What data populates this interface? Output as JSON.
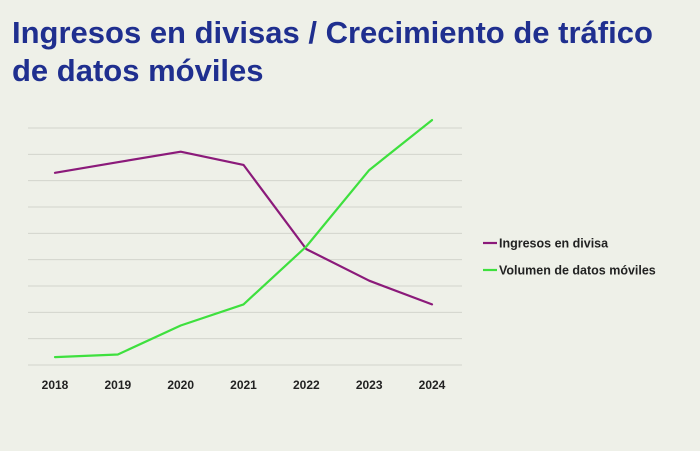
{
  "title": "Ingresos en divisas / Crecimiento de tráfico de datos móviles",
  "chart_data": {
    "type": "line",
    "categories": [
      "2018",
      "2019",
      "2020",
      "2021",
      "2022",
      "2023",
      "2024"
    ],
    "ylim": [
      0,
      9
    ],
    "grid": true,
    "legend_position": "right",
    "series": [
      {
        "name": "Ingresos en divisa",
        "color": "#8b1a7a",
        "values": [
          7.3,
          7.7,
          8.1,
          7.6,
          4.4,
          3.2,
          2.3
        ]
      },
      {
        "name": "Volumen de datos móviles",
        "color": "#3ee03e",
        "values": [
          0.3,
          0.4,
          1.5,
          2.3,
          4.5,
          7.4,
          9.3
        ]
      }
    ]
  }
}
